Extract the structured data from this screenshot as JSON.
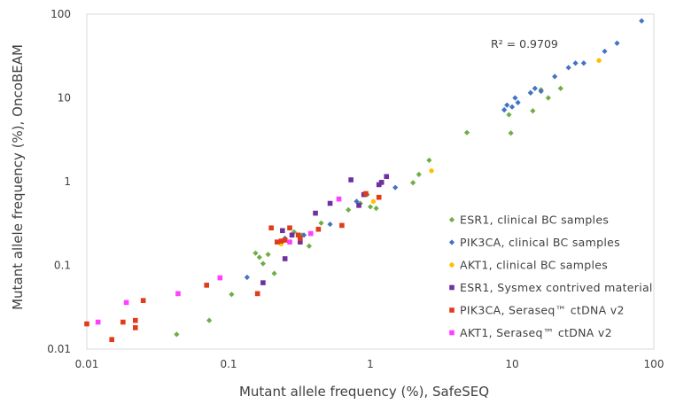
{
  "chart_data": {
    "type": "scatter",
    "xscale": "log",
    "yscale": "log",
    "xlim": [
      0.01,
      100
    ],
    "ylim": [
      0.01,
      100
    ],
    "xticks": [
      "0.01",
      "0.1",
      "1",
      "10",
      "100"
    ],
    "yticks": [
      "0.01",
      "0.1",
      "1",
      "10",
      "100"
    ],
    "xlabel": "Mutant allele frequency (%), SafeSEQ",
    "ylabel": "Mutant allele frequency (%), OncoBEAM",
    "annotation": "R² = 0.9709",
    "legend_position": "bottom-right",
    "series": [
      {
        "name": "ESR1, clinical BC samples",
        "marker": "diamond",
        "color": "#70ad47",
        "points": [
          [
            0.043,
            0.015
          ],
          [
            0.073,
            0.022
          ],
          [
            0.105,
            0.045
          ],
          [
            0.155,
            0.14
          ],
          [
            0.165,
            0.125
          ],
          [
            0.175,
            0.105
          ],
          [
            0.19,
            0.135
          ],
          [
            0.21,
            0.08
          ],
          [
            0.25,
            0.21
          ],
          [
            0.29,
            0.25
          ],
          [
            0.33,
            0.23
          ],
          [
            0.37,
            0.17
          ],
          [
            0.45,
            0.32
          ],
          [
            0.7,
            0.46
          ],
          [
            0.85,
            0.55
          ],
          [
            0.95,
            0.7
          ],
          [
            1.0,
            0.5
          ],
          [
            1.1,
            0.48
          ],
          [
            2.0,
            0.97
          ],
          [
            2.2,
            1.22
          ],
          [
            2.6,
            1.8
          ],
          [
            4.8,
            3.85
          ],
          [
            9.5,
            6.3
          ],
          [
            9.8,
            3.8
          ],
          [
            13.5,
            11.5
          ],
          [
            14,
            7
          ],
          [
            16,
            12.5
          ],
          [
            18,
            10
          ],
          [
            22,
            13
          ]
        ]
      },
      {
        "name": "PIK3CA, clinical BC samples",
        "marker": "diamond",
        "color": "#4472c4",
        "points": [
          [
            0.135,
            0.072
          ],
          [
            0.25,
            0.21
          ],
          [
            0.34,
            0.23
          ],
          [
            0.52,
            0.31
          ],
          [
            0.8,
            0.58
          ],
          [
            1.2,
            0.97
          ],
          [
            1.5,
            0.85
          ],
          [
            8.8,
            7.2
          ],
          [
            9.2,
            8.2
          ],
          [
            10,
            7.8
          ],
          [
            10.5,
            10
          ],
          [
            11,
            8.8
          ],
          [
            13.5,
            11.5
          ],
          [
            14.5,
            13
          ],
          [
            16,
            12
          ],
          [
            20,
            18
          ],
          [
            25,
            23
          ],
          [
            28,
            26
          ],
          [
            32,
            26
          ],
          [
            45,
            36
          ],
          [
            55,
            45
          ],
          [
            82,
            83
          ]
        ]
      },
      {
        "name": "AKT1, clinical BC samples",
        "marker": "circle",
        "color": "#ffc000",
        "points": [
          [
            0.235,
            0.18
          ],
          [
            1.05,
            0.58
          ],
          [
            2.7,
            1.35
          ],
          [
            41,
            28
          ]
        ]
      },
      {
        "name": "ESR1, Sysmex contrived material",
        "marker": "square",
        "color": "#7030a0",
        "points": [
          [
            0.175,
            0.062
          ],
          [
            0.24,
            0.26
          ],
          [
            0.25,
            0.12
          ],
          [
            0.28,
            0.23
          ],
          [
            0.32,
            0.19
          ],
          [
            0.41,
            0.42
          ],
          [
            0.52,
            0.55
          ],
          [
            0.73,
            1.05
          ],
          [
            0.83,
            0.52
          ],
          [
            0.9,
            0.7
          ],
          [
            1.15,
            0.92
          ],
          [
            1.2,
            0.98
          ],
          [
            1.3,
            1.15
          ]
        ]
      },
      {
        "name": "PIK3CA, Seraseq™ ctDNA v2",
        "marker": "square",
        "color": "#e03c1a",
        "points": [
          [
            0.01,
            0.02
          ],
          [
            0.015,
            0.013
          ],
          [
            0.018,
            0.021
          ],
          [
            0.022,
            0.018
          ],
          [
            0.022,
            0.022
          ],
          [
            0.025,
            0.038
          ],
          [
            0.07,
            0.058
          ],
          [
            0.16,
            0.046
          ],
          [
            0.2,
            0.28
          ],
          [
            0.22,
            0.19
          ],
          [
            0.235,
            0.195
          ],
          [
            0.25,
            0.2
          ],
          [
            0.27,
            0.28
          ],
          [
            0.31,
            0.23
          ],
          [
            0.32,
            0.21
          ],
          [
            0.43,
            0.27
          ],
          [
            0.63,
            0.3
          ],
          [
            0.93,
            0.72
          ],
          [
            1.15,
            0.65
          ]
        ]
      },
      {
        "name": "AKT1, Seraseq™ ctDNA v2",
        "marker": "square",
        "color": "#ff40ff",
        "points": [
          [
            0.012,
            0.021
          ],
          [
            0.019,
            0.036
          ],
          [
            0.044,
            0.046
          ],
          [
            0.087,
            0.071
          ],
          [
            0.27,
            0.19
          ],
          [
            0.38,
            0.24
          ],
          [
            0.6,
            0.62
          ]
        ]
      }
    ]
  }
}
